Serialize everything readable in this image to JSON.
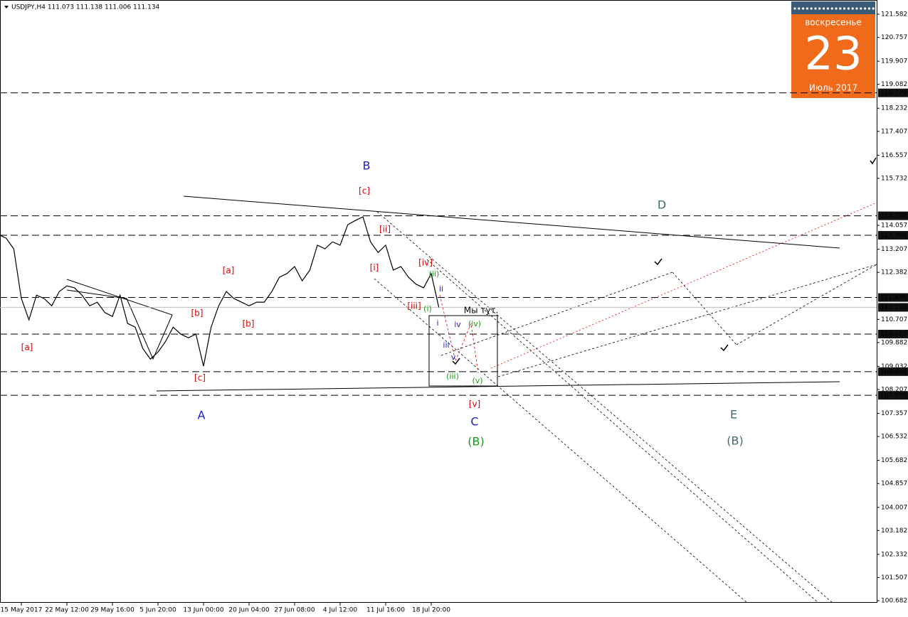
{
  "header": {
    "symbol_line": "USDJPY,H4  111.073 111.138 111.006 111.134"
  },
  "calendar": {
    "weekday": "воскресенье",
    "day": "23",
    "month": "Июль 2017"
  },
  "chart_data": {
    "type": "line",
    "color": "#000000",
    "categories": [
      null,
      null,
      null,
      "15 May 2017",
      null,
      null,
      null,
      null,
      null,
      "22 May 12:00",
      null,
      null,
      null,
      null,
      null,
      "29 May 16:00",
      null,
      null,
      null,
      null,
      null,
      "5 Jun 20:00",
      null,
      null,
      null,
      null,
      null,
      "13 Jun 00:00",
      null,
      null,
      null,
      null,
      null,
      "20 Jun 04:00",
      null,
      null,
      null,
      null,
      null,
      "27 Jun 08:00",
      null,
      null,
      null,
      null,
      null,
      "4 Jul 12:00",
      null,
      null,
      null,
      null,
      null,
      "11 Jul 16:00",
      null,
      null,
      null,
      null,
      null,
      "18 Jul 20:00",
      null
    ],
    "values": [
      113.73,
      113.6,
      113.22,
      111.45,
      110.69,
      111.57,
      111.45,
      111.19,
      111.7,
      111.9,
      111.83,
      111.57,
      111.19,
      111.32,
      110.95,
      110.81,
      111.57,
      110.56,
      110.43,
      109.67,
      109.29,
      109.54,
      109.92,
      110.43,
      110.18,
      110.05,
      110.18,
      109.04,
      110.43,
      111.19,
      111.7,
      111.45,
      111.32,
      111.19,
      111.32,
      111.32,
      111.7,
      112.21,
      112.34,
      112.59,
      112.08,
      112.46,
      113.35,
      113.22,
      113.47,
      113.35,
      114.08,
      114.23,
      114.36,
      113.47,
      113.09,
      113.35,
      112.46,
      112.59,
      112.21,
      111.96,
      111.83,
      112.34,
      111.134
    ],
    "ylim": [
      100.606,
      122.089
    ],
    "yticks": [
      121.582,
      120.757,
      119.907,
      119.082,
      118.232,
      117.407,
      116.557,
      115.732,
      114.057,
      113.207,
      112.382,
      110.707,
      109.882,
      109.032,
      108.207,
      107.357,
      106.532,
      105.682,
      104.857,
      104.007,
      103.182,
      102.332,
      101.507,
      100.682
    ],
    "levels": [
      118.779,
      114.398,
      113.704,
      111.486,
      110.183,
      108.844,
      107.999
    ],
    "price_line": 111.134,
    "annotations": [
      {
        "text": "[a]",
        "color": "#e00000"
      },
      {
        "text": "[b]",
        "color": "#e00000"
      },
      {
        "text": "[c]",
        "color": "#e00000"
      },
      {
        "text": "[a]",
        "color": "#e00000"
      },
      {
        "text": "[b]",
        "color": "#e00000"
      },
      {
        "text": "[c]",
        "color": "#e00000"
      },
      {
        "text": "[ii]",
        "color": "#e00000"
      },
      {
        "text": "[i]",
        "color": "#e00000"
      },
      {
        "text": "[iv]",
        "color": "#e00000"
      },
      {
        "text": "[iii]",
        "color": "#e00000"
      },
      {
        "text": "[v]",
        "color": "#e00000"
      },
      {
        "text": "A",
        "color": "#1c1cd6"
      },
      {
        "text": "B",
        "color": "#1c1cd6"
      },
      {
        "text": "C",
        "color": "#1c1cd6"
      },
      {
        "text": "i",
        "color": "#1c1cd6"
      },
      {
        "text": "ii",
        "color": "#1c1cd6"
      },
      {
        "text": "iii",
        "color": "#1c1cd6"
      },
      {
        "text": "iv",
        "color": "#1c1cd6"
      },
      {
        "text": "v",
        "color": "#1c1cd6"
      },
      {
        "text": "(i)",
        "color": "#1a9a1a"
      },
      {
        "text": "(ii)",
        "color": "#1a9a1a"
      },
      {
        "text": "(iii)",
        "color": "#1a9a1a"
      },
      {
        "text": "(iv)",
        "color": "#1a9a1a"
      },
      {
        "text": "(v)",
        "color": "#1a9a1a"
      },
      {
        "text": "(B)",
        "color": "#1a9a1a"
      },
      {
        "text": "D",
        "color": "#3d6b6b"
      },
      {
        "text": "E",
        "color": "#3d6b6b"
      },
      {
        "text": "(B)",
        "color": "#3d6b6b"
      },
      {
        "text": "Мы тут.",
        "color": "#000000"
      }
    ]
  }
}
